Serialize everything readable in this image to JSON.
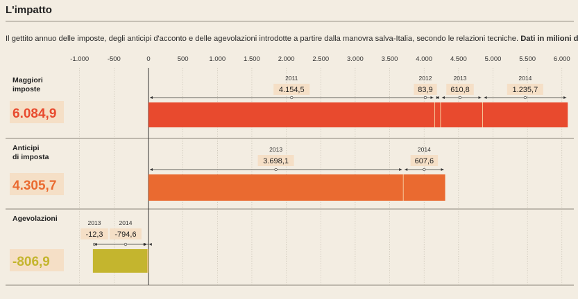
{
  "header": {
    "title": "L'impatto",
    "subtitle": "Il gettito annuo delle imposte, degli anticipi d'acconto e delle agevolazioni introdotte a partire dalla manovra salva-Italia, secondo le relazioni tecniche.",
    "unit_note": "Dati in milioni di euro"
  },
  "colors": {
    "maggiori": "#e84a2e",
    "anticipi": "#ea6a30",
    "agevolazioni": "#c4b52e",
    "label_bg": "#f5dfc6"
  },
  "chart_data": {
    "type": "bar",
    "orientation": "horizontal",
    "stacked": true,
    "x_ticks": [
      "-1.000",
      "-500",
      "0",
      "500",
      "1.000",
      "1.500",
      "2.000",
      "2.500",
      "3.000",
      "3.500",
      "4.000",
      "4.500",
      "5.000",
      "5.500",
      "6.000"
    ],
    "xlim": [
      -1000,
      6000
    ],
    "grid": true,
    "categories": [
      {
        "name": "Maggiori imposte",
        "name_lines": [
          "Maggiori",
          "imposte"
        ],
        "total": "6.084,9",
        "color": "#e84a2e",
        "segments": [
          {
            "year": "2011",
            "value": 4154.5,
            "label": "4.154,5"
          },
          {
            "year": "2012",
            "value": 83.9,
            "label": "83,9"
          },
          {
            "year": "2013",
            "value": 610.8,
            "label": "610,8"
          },
          {
            "year": "2014",
            "value": 1235.7,
            "label": "1.235,7"
          }
        ]
      },
      {
        "name": "Anticipi di imposta",
        "name_lines": [
          "Anticipi",
          "di imposta"
        ],
        "total": "4.305,7",
        "color": "#ea6a30",
        "segments": [
          {
            "year": "2013",
            "value": 3698.1,
            "label": "3.698,1"
          },
          {
            "year": "2014",
            "value": 607.6,
            "label": "607,6"
          }
        ]
      },
      {
        "name": "Agevolazioni",
        "name_lines": [
          "Agevolazioni"
        ],
        "total": "-806,9",
        "color": "#c4b52e",
        "segments": [
          {
            "year": "2013",
            "value": -12.3,
            "label": "-12,3"
          },
          {
            "year": "2014",
            "value": -794.6,
            "label": "-794,6"
          }
        ]
      }
    ]
  }
}
